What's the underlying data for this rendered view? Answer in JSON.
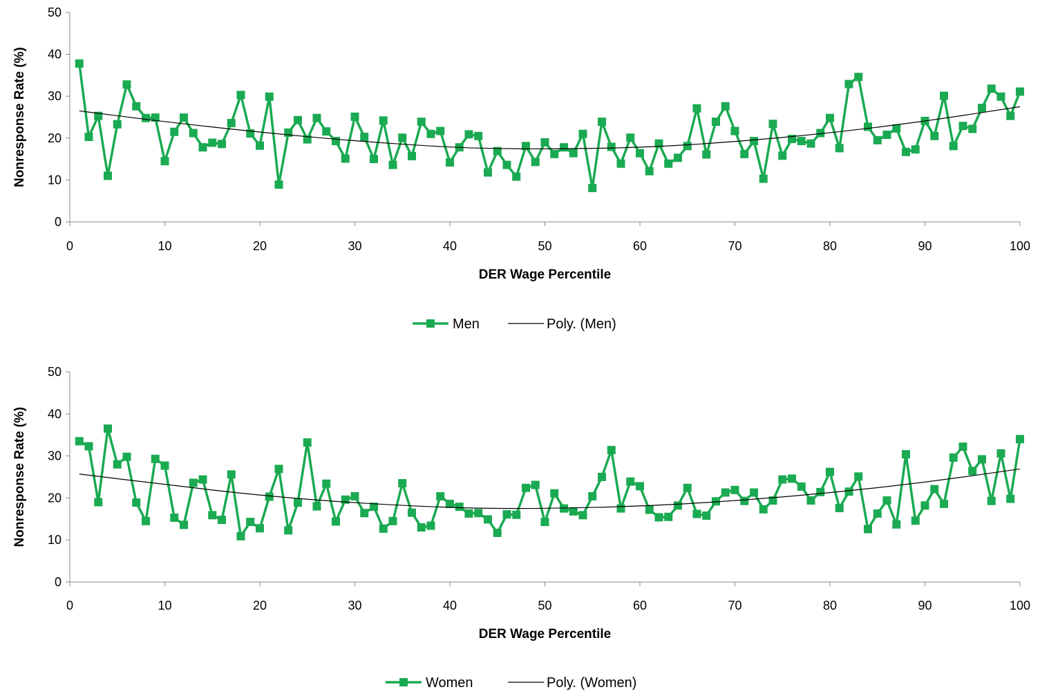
{
  "colors": {
    "series": "#1aaa52",
    "trend": "#000000",
    "axis": "#888888"
  },
  "chart_data": [
    {
      "type": "line",
      "xlabel": "DER Wage Percentile",
      "ylabel": "Nonresponse Rate (%)",
      "xlim": [
        0,
        100
      ],
      "ylim": [
        0,
        50
      ],
      "x_ticks": [
        "0",
        "10",
        "20",
        "30",
        "40",
        "50",
        "60",
        "70",
        "80",
        "90",
        "100"
      ],
      "y_ticks": [
        "0",
        "10",
        "20",
        "30",
        "40",
        "50"
      ],
      "grid": false,
      "legend_position": "bottom",
      "series": [
        {
          "name": "Men",
          "marker": "square",
          "x": [
            1,
            2,
            3,
            4,
            5,
            6,
            7,
            8,
            9,
            10,
            11,
            12,
            13,
            14,
            15,
            16,
            17,
            18,
            19,
            20,
            21,
            22,
            23,
            24,
            25,
            26,
            27,
            28,
            29,
            30,
            31,
            32,
            33,
            34,
            35,
            36,
            37,
            38,
            39,
            40,
            41,
            42,
            43,
            44,
            45,
            46,
            47,
            48,
            49,
            50,
            51,
            52,
            53,
            54,
            55,
            56,
            57,
            58,
            59,
            60,
            61,
            62,
            63,
            64,
            65,
            66,
            67,
            68,
            69,
            70,
            71,
            72,
            73,
            74,
            75,
            76,
            77,
            78,
            79,
            80,
            81,
            82,
            83,
            84,
            85,
            86,
            87,
            88,
            89,
            90,
            91,
            92,
            93,
            94,
            95,
            96,
            97,
            98,
            99,
            100
          ],
          "values": [
            37.8,
            20.3,
            25.3,
            11.0,
            23.3,
            32.8,
            27.6,
            24.8,
            24.9,
            14.5,
            21.5,
            24.9,
            21.2,
            17.8,
            18.9,
            18.6,
            23.6,
            30.3,
            21.1,
            18.2,
            29.9,
            8.9,
            21.3,
            24.3,
            19.7,
            24.8,
            21.6,
            19.3,
            15.1,
            25.1,
            20.3,
            15.0,
            24.2,
            13.6,
            20.1,
            15.7,
            23.9,
            21.0,
            21.7,
            14.2,
            17.8,
            20.9,
            20.5,
            11.8,
            16.9,
            13.6,
            10.8,
            18.1,
            14.3,
            19.0,
            16.2,
            17.8,
            16.4,
            21.0,
            8.1,
            23.9,
            17.9,
            13.9,
            20.1,
            16.4,
            12.1,
            18.7,
            13.9,
            15.3,
            18.1,
            27.1,
            16.1,
            23.9,
            27.6,
            21.7,
            16.2,
            19.3,
            10.3,
            23.4,
            15.8,
            19.8,
            19.3,
            18.7,
            21.2,
            24.8,
            17.6,
            32.9,
            34.6,
            22.7,
            19.5,
            20.8,
            22.3,
            16.7,
            17.3,
            24.1,
            20.5,
            30.1,
            18.1,
            22.9,
            22.2,
            27.2,
            31.8,
            29.9,
            25.3,
            31.1
          ]
        },
        {
          "name": "Poly. (Men)",
          "type": "trendline",
          "order": 2,
          "x": [
            1,
            10,
            20,
            30,
            40,
            45,
            50,
            60,
            70,
            80,
            90,
            100
          ],
          "values": [
            26.5,
            23.9,
            21.4,
            19.3,
            17.8,
            17.5,
            17.4,
            17.7,
            19.1,
            21.2,
            24.0,
            27.5
          ]
        }
      ]
    },
    {
      "type": "line",
      "xlabel": "DER Wage Percentile",
      "ylabel": "Nonresponse Rate (%)",
      "xlim": [
        0,
        100
      ],
      "ylim": [
        0,
        50
      ],
      "x_ticks": [
        "0",
        "10",
        "20",
        "30",
        "40",
        "50",
        "60",
        "70",
        "80",
        "90",
        "100"
      ],
      "y_ticks": [
        "0",
        "10",
        "20",
        "30",
        "40",
        "50"
      ],
      "grid": false,
      "legend_position": "bottom",
      "series": [
        {
          "name": "Women",
          "marker": "square",
          "x": [
            1,
            2,
            3,
            4,
            5,
            6,
            7,
            8,
            9,
            10,
            11,
            12,
            13,
            14,
            15,
            16,
            17,
            18,
            19,
            20,
            21,
            22,
            23,
            24,
            25,
            26,
            27,
            28,
            29,
            30,
            31,
            32,
            33,
            34,
            35,
            36,
            37,
            38,
            39,
            40,
            41,
            42,
            43,
            44,
            45,
            46,
            47,
            48,
            49,
            50,
            51,
            52,
            53,
            54,
            55,
            56,
            57,
            58,
            59,
            60,
            61,
            62,
            63,
            64,
            65,
            66,
            67,
            68,
            69,
            70,
            71,
            72,
            73,
            74,
            75,
            76,
            77,
            78,
            79,
            80,
            81,
            82,
            83,
            84,
            85,
            86,
            87,
            88,
            89,
            90,
            91,
            92,
            93,
            94,
            95,
            96,
            97,
            98,
            99,
            100
          ],
          "values": [
            33.5,
            32.3,
            19.0,
            36.5,
            28.0,
            29.8,
            18.9,
            14.5,
            29.3,
            27.7,
            15.3,
            13.6,
            23.6,
            24.4,
            15.9,
            14.8,
            25.6,
            10.9,
            14.3,
            12.8,
            20.3,
            26.9,
            12.3,
            18.9,
            33.2,
            18.0,
            23.4,
            14.4,
            19.6,
            20.4,
            16.4,
            17.9,
            12.7,
            14.5,
            23.5,
            16.5,
            13.0,
            13.4,
            20.4,
            18.6,
            17.9,
            16.3,
            16.4,
            14.9,
            11.7,
            16.1,
            16.0,
            22.4,
            23.1,
            14.3,
            21.1,
            17.5,
            16.8,
            15.9,
            20.4,
            25.0,
            31.4,
            17.5,
            23.9,
            22.8,
            17.2,
            15.4,
            15.5,
            18.2,
            22.4,
            16.2,
            15.8,
            19.2,
            21.3,
            21.9,
            19.3,
            21.3,
            17.3,
            19.4,
            24.4,
            24.6,
            22.7,
            19.4,
            21.4,
            26.2,
            17.6,
            21.5,
            25.1,
            12.6,
            16.3,
            19.4,
            13.7,
            30.4,
            14.6,
            18.2,
            22.1,
            18.6,
            29.6,
            32.2,
            26.4,
            29.2,
            19.3,
            30.6,
            19.8,
            34.0
          ]
        },
        {
          "name": "Poly. (Women)",
          "type": "trendline",
          "order": 2,
          "x": [
            1,
            10,
            20,
            30,
            40,
            45,
            50,
            60,
            70,
            80,
            90,
            100
          ],
          "values": [
            25.7,
            23.2,
            20.6,
            18.8,
            17.7,
            17.5,
            17.5,
            18.0,
            19.3,
            21.2,
            23.7,
            26.9
          ]
        }
      ]
    }
  ]
}
